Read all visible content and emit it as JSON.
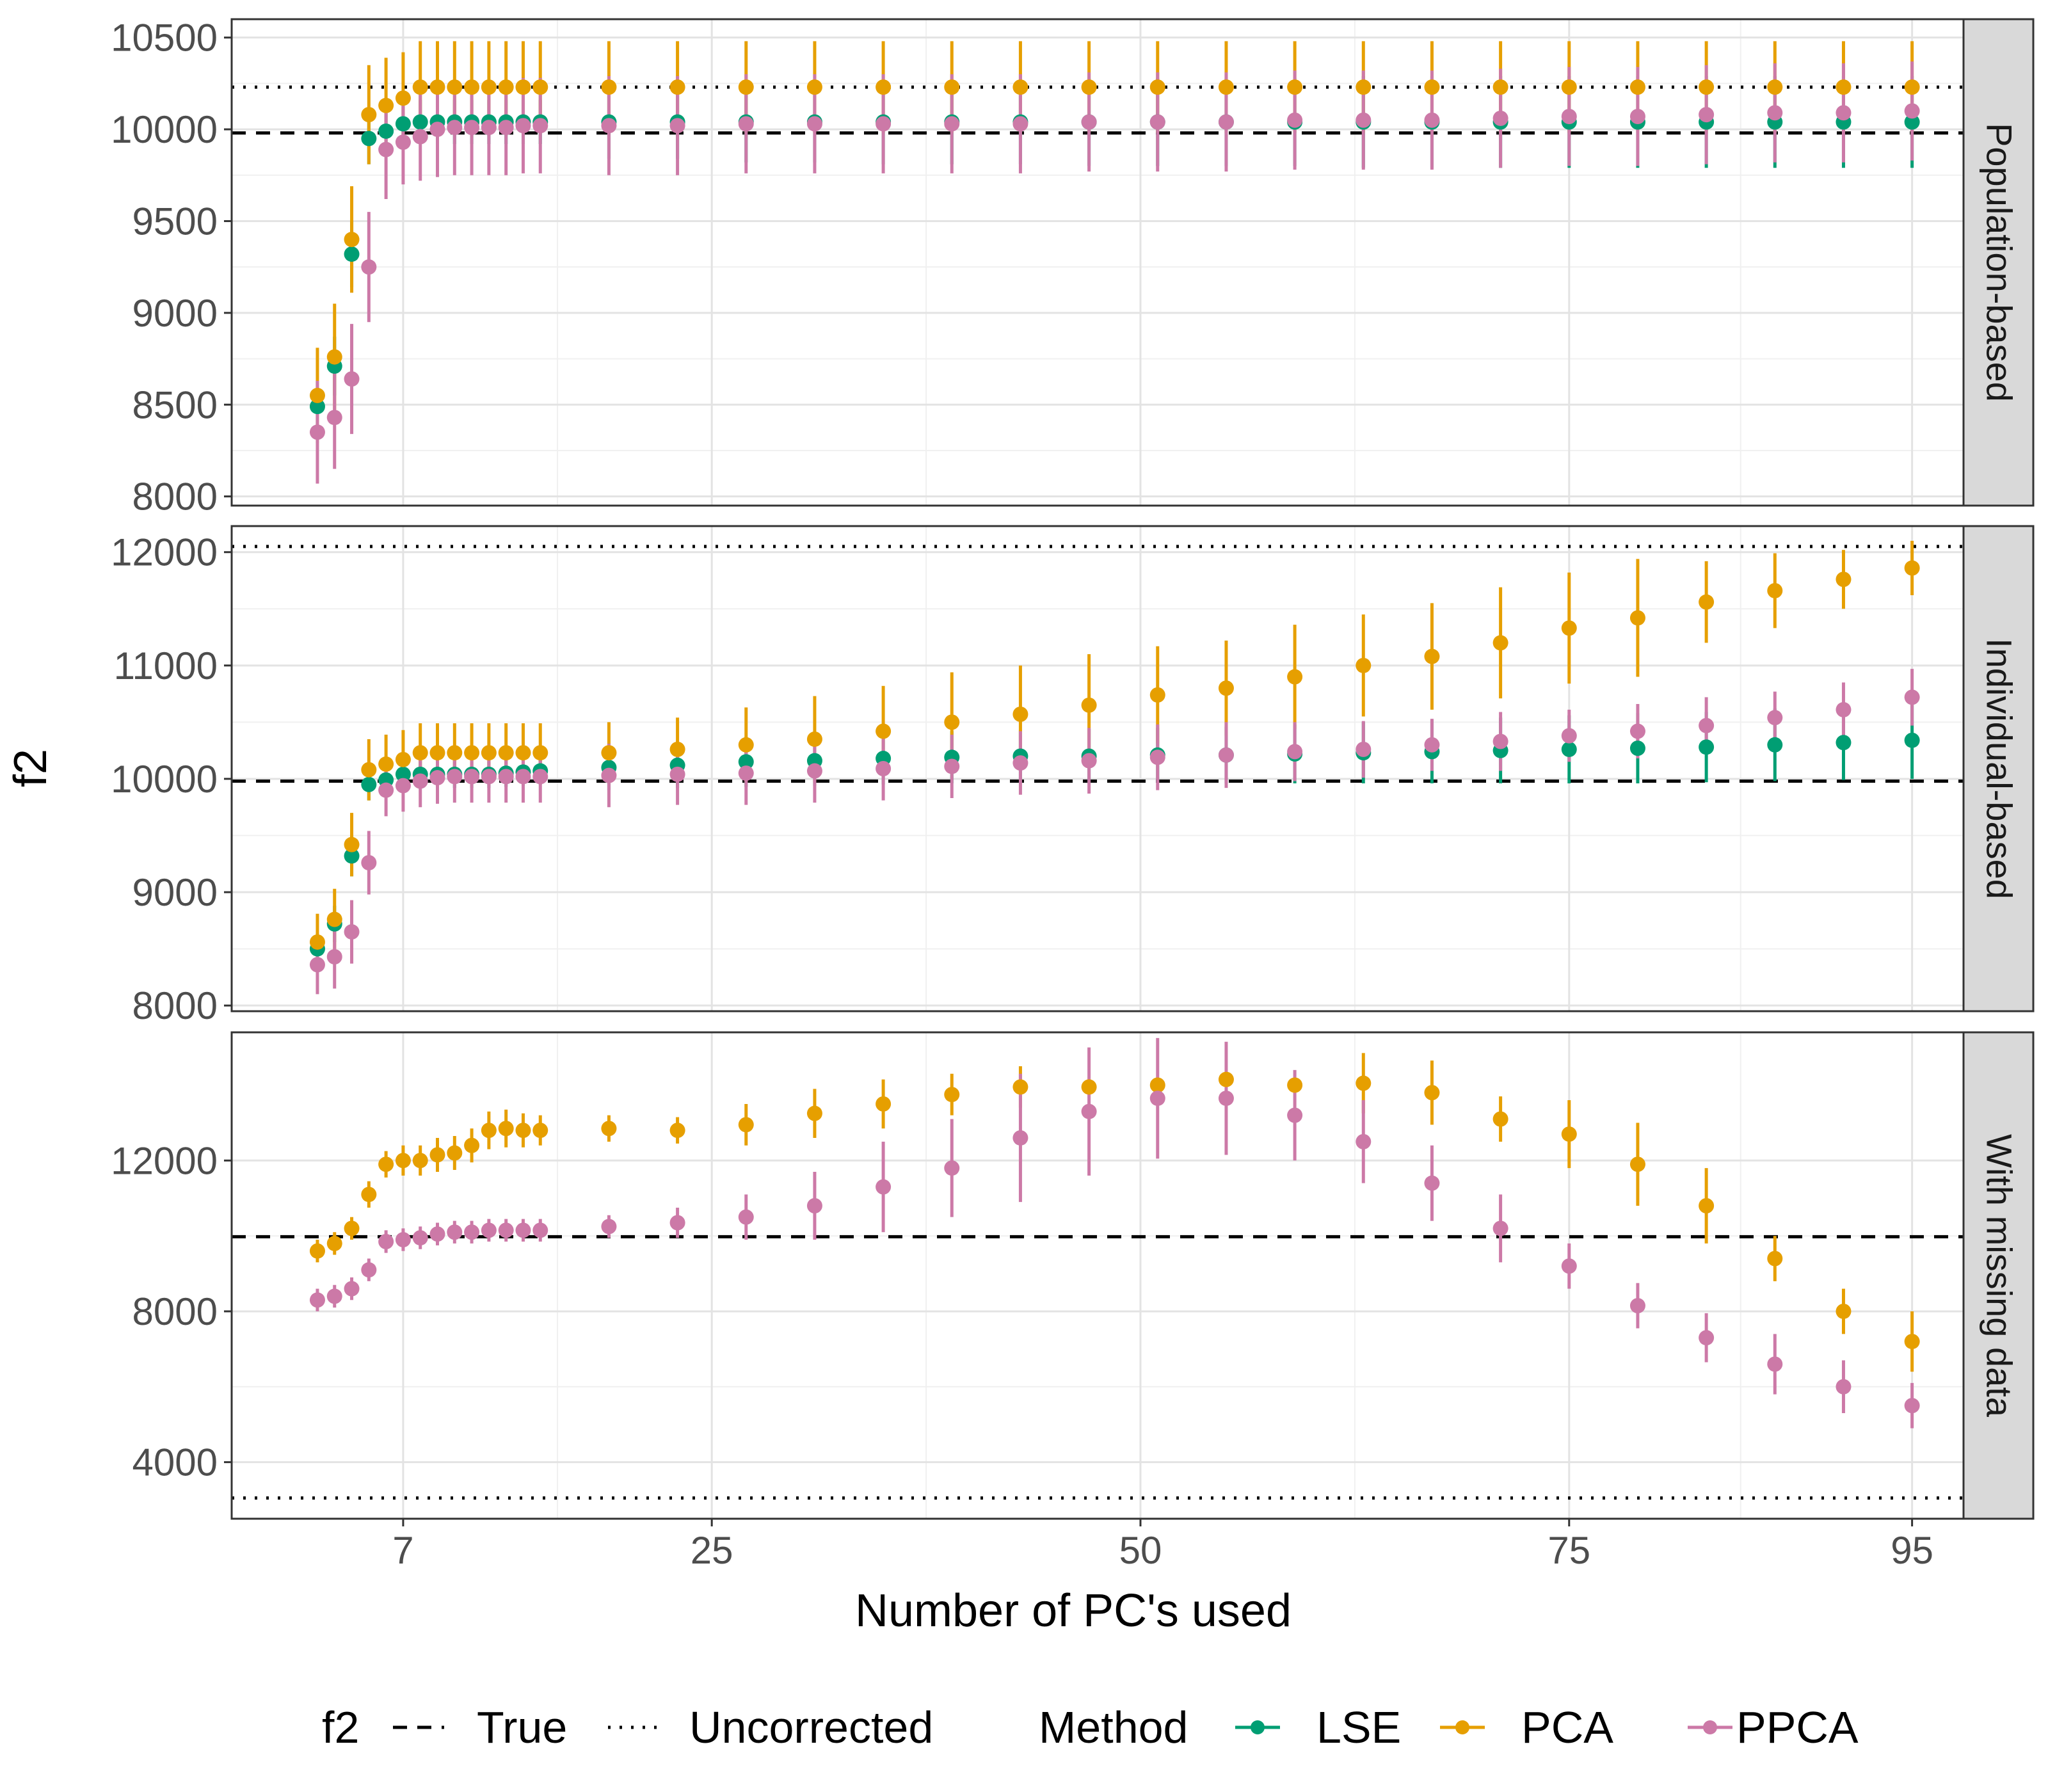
{
  "chart_data": {
    "type": "scatter",
    "subtype": "point-range facets",
    "xlabel": "Number of PC's used",
    "ylabel": "f2",
    "x_ticks": [
      7,
      25,
      50,
      75,
      95
    ],
    "xlim": [
      -3,
      98
    ],
    "grid": true,
    "legend_placement": "bottom",
    "legend": {
      "linetype_title": "f2",
      "linetypes": [
        {
          "name": "True",
          "style": "dashed"
        },
        {
          "name": "Uncorrected",
          "style": "dotted"
        }
      ],
      "color_title": "Method",
      "methods": [
        {
          "name": "LSE",
          "color": "#009E73"
        },
        {
          "name": "PCA",
          "color": "#E69F00"
        },
        {
          "name": "PPCA",
          "color": "#CC79A7"
        }
      ]
    },
    "x": [
      2,
      3,
      4,
      5,
      6,
      7,
      8,
      9,
      10,
      11,
      12,
      13,
      14,
      15,
      19,
      23,
      27,
      31,
      35,
      39,
      43,
      47,
      51,
      55,
      59,
      63,
      67,
      71,
      75,
      79,
      83,
      87,
      91,
      95
    ],
    "panels": [
      {
        "strip": "Population-based",
        "ylim": [
          7950,
          10600
        ],
        "y_ticks": [
          8000,
          8500,
          9000,
          9500,
          10000,
          10500
        ],
        "true_value": 9980,
        "uncorrected_value": 10230,
        "series": [
          {
            "name": "LSE",
            "values": [
              8490,
              8710,
              9320,
              9950,
              9990,
              10030,
              10040,
              10040,
              10040,
              10040,
              10040,
              10040,
              10040,
              10040,
              10040,
              10040,
              10040,
              10040,
              10040,
              10040,
              10040,
              10040,
              10040,
              10040,
              10040,
              10040,
              10040,
              10040,
              10040,
              10040,
              10040,
              10040,
              10040,
              10040
            ],
            "err": [
              140,
              160,
              180,
              140,
              120,
              120,
              120,
              120,
              120,
              120,
              120,
              120,
              120,
              120,
              200,
              200,
              220,
              220,
              230,
              230,
              230,
              240,
              240,
              240,
              240,
              250,
              250,
              250,
              250,
              250,
              250,
              250,
              250,
              250
            ]
          },
          {
            "name": "PCA",
            "values": [
              8550,
              8760,
              9400,
              10080,
              10130,
              10170,
              10230,
              10230,
              10230,
              10230,
              10230,
              10230,
              10230,
              10230,
              10230,
              10230,
              10230,
              10230,
              10230,
              10230,
              10230,
              10230,
              10230,
              10230,
              10230,
              10230,
              10230,
              10230,
              10230,
              10230,
              10230,
              10230,
              10230,
              10230
            ],
            "err": [
              260,
              290,
              290,
              270,
              260,
              250,
              250,
              250,
              250,
              250,
              250,
              250,
              250,
              250,
              250,
              250,
              250,
              250,
              250,
              250,
              250,
              250,
              250,
              250,
              250,
              250,
              250,
              250,
              250,
              250,
              250,
              250,
              250,
              250
            ]
          },
          {
            "name": "PPCA",
            "values": [
              8350,
              8430,
              8640,
              9250,
              9890,
              9930,
              9960,
              10000,
              10010,
              10010,
              10010,
              10010,
              10020,
              10020,
              10020,
              10020,
              10030,
              10030,
              10030,
              10030,
              10030,
              10040,
              10040,
              10040,
              10050,
              10050,
              10050,
              10060,
              10070,
              10070,
              10080,
              10090,
              10090,
              10100
            ],
            "err": [
              280,
              280,
              300,
              300,
              270,
              230,
              240,
              260,
              260,
              260,
              260,
              260,
              260,
              260,
              270,
              270,
              270,
              270,
              270,
              270,
              270,
              270,
              270,
              270,
              270,
              270,
              270,
              270,
              270,
              270,
              270,
              270,
              270,
              270
            ]
          }
        ]
      },
      {
        "strip": "Individual-based",
        "ylim": [
          7950,
          12230
        ],
        "y_ticks": [
          8000,
          9000,
          10000,
          11000,
          12000
        ],
        "true_value": 9980,
        "uncorrected_value": 12050,
        "series": [
          {
            "name": "LSE",
            "values": [
              8500,
              8720,
              9320,
              9950,
              9990,
              10040,
              10040,
              10040,
              10040,
              10040,
              10040,
              10050,
              10060,
              10070,
              10100,
              10120,
              10150,
              10160,
              10180,
              10190,
              10200,
              10200,
              10210,
              10210,
              10220,
              10230,
              10240,
              10250,
              10260,
              10270,
              10280,
              10300,
              10320,
              10340
            ],
            "err": [
              140,
              160,
              180,
              140,
              120,
              120,
              120,
              120,
              120,
              120,
              120,
              120,
              120,
              120,
              200,
              200,
              220,
              220,
              230,
              230,
              230,
              240,
              240,
              250,
              260,
              270,
              280,
              290,
              300,
              310,
              310,
              320,
              330,
              340
            ]
          },
          {
            "name": "PCA",
            "values": [
              8560,
              8760,
              9420,
              10080,
              10130,
              10170,
              10230,
              10230,
              10230,
              10230,
              10230,
              10230,
              10230,
              10230,
              10230,
              10260,
              10300,
              10350,
              10420,
              10500,
              10570,
              10650,
              10740,
              10800,
              10900,
              11000,
              11080,
              11200,
              11330,
              11420,
              11560,
              11660,
              11760,
              11860
            ],
            "err": [
              250,
              270,
              280,
              270,
              260,
              260,
              260,
              260,
              260,
              260,
              260,
              260,
              260,
              260,
              270,
              280,
              330,
              380,
              400,
              440,
              430,
              450,
              430,
              420,
              460,
              450,
              470,
              490,
              490,
              520,
              360,
              330,
              260,
              240
            ]
          },
          {
            "name": "PPCA",
            "values": [
              8360,
              8430,
              8650,
              9260,
              9900,
              9940,
              9980,
              10010,
              10020,
              10020,
              10020,
              10020,
              10020,
              10020,
              10030,
              10040,
              10050,
              10070,
              10090,
              10110,
              10140,
              10160,
              10190,
              10210,
              10240,
              10260,
              10300,
              10330,
              10380,
              10420,
              10470,
              10540,
              10610,
              10720
            ],
            "err": [
              260,
              280,
              280,
              280,
              230,
              230,
              230,
              230,
              230,
              230,
              230,
              230,
              230,
              230,
              280,
              270,
              280,
              280,
              280,
              280,
              280,
              290,
              290,
              290,
              260,
              250,
              230,
              260,
              230,
              240,
              250,
              230,
              240,
              250
            ]
          }
        ]
      },
      {
        "strip": "With missing data",
        "ylim": [
          2500,
          15400
        ],
        "y_ticks": [
          4000,
          8000,
          12000
        ],
        "true_value": 9980,
        "uncorrected_value": 3050,
        "series": [
          {
            "name": "PCA",
            "values": [
              9600,
              9800,
              10200,
              11100,
              11900,
              12000,
              12000,
              12150,
              12200,
              12400,
              12800,
              12850,
              12800,
              12800,
              12850,
              12800,
              12950,
              13250,
              13500,
              13750,
              13950,
              13950,
              14000,
              14150,
              14000,
              14050,
              13800,
              13100,
              12700,
              11900,
              10800,
              9400,
              8000,
              7200
            ],
            "err": [
              300,
              300,
              300,
              350,
              350,
              400,
              400,
              450,
              450,
              450,
              500,
              500,
              450,
              400,
              350,
              350,
              550,
              650,
              650,
              550,
              550,
              0,
              0,
              0,
              0,
              800,
              850,
              600,
              900,
              1100,
              1000,
              600,
              600,
              800
            ]
          },
          {
            "name": "PPCA",
            "values": [
              8300,
              8400,
              8600,
              9100,
              9850,
              9900,
              9950,
              10050,
              10100,
              10100,
              10150,
              10150,
              10150,
              10150,
              10250,
              10350,
              10500,
              10800,
              11300,
              11800,
              12600,
              13300,
              13650,
              13650,
              13200,
              12500,
              11400,
              10200,
              9200,
              8150,
              7300,
              6600,
              6000,
              5500
            ],
            "err": [
              300,
              300,
              300,
              300,
              300,
              300,
              300,
              300,
              300,
              300,
              300,
              300,
              300,
              300,
              300,
              400,
              600,
              900,
              1200,
              1300,
              1700,
              1700,
              1600,
              1500,
              1200,
              1100,
              1000,
              900,
              600,
              600,
              650,
              800,
              700,
              600
            ]
          }
        ]
      }
    ]
  }
}
